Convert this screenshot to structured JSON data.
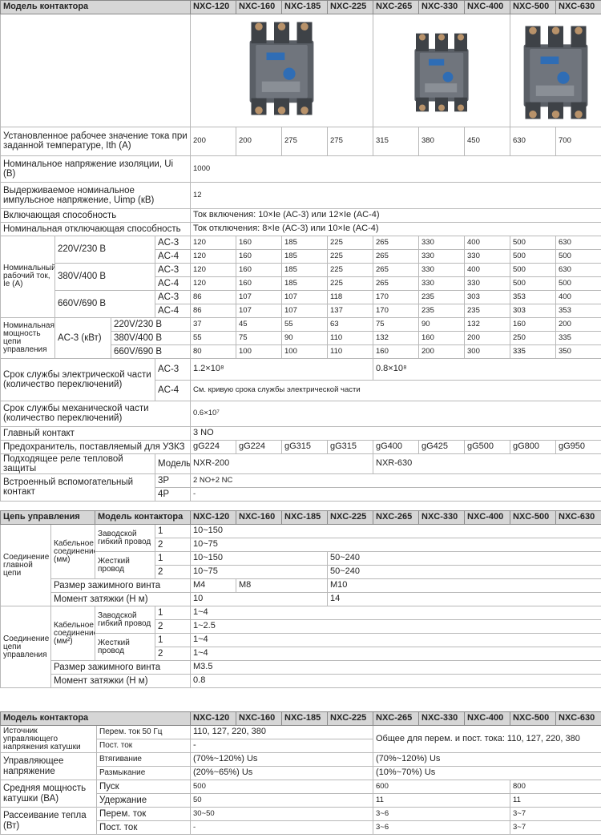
{
  "table1": {
    "header": [
      "Модель контактора",
      "NXC-120",
      "NXC-160",
      "NXC-185",
      "NXC-225",
      "NXC-265",
      "NXC-330",
      "NXC-400",
      "NXC-500",
      "NXC-630"
    ],
    "rows": [
      [
        "Установленное рабочее значение тока при заданной температуре, Ith (A)",
        200,
        200,
        275,
        275,
        315,
        380,
        450,
        630,
        700
      ],
      [
        "Номинальное напряжение изоляции, Ui (В)",
        1000
      ],
      [
        "Выдерживаемое номинальное импульсное напряжение, Uimp (кВ)",
        12
      ],
      [
        "Включающая способность",
        "Ток включения: 10×Ie (AC-3) или 12×Ie (AC-4)"
      ],
      [
        "Номинальная отключающая способность",
        "Ток отключения: 8×Ie (AC-3) или 10×Ie (AC-4)"
      ],
      [
        "Номинальный рабочий ток, Ie (A)",
        "220V/230 В",
        "AC-3",
        120,
        160,
        185,
        225,
        265,
        330,
        400,
        500,
        630
      ],
      [
        "AC-4",
        120,
        160,
        185,
        225,
        265,
        330,
        330,
        500,
        500
      ],
      [
        "380V/400 В",
        "AC-3",
        120,
        160,
        185,
        225,
        265,
        330,
        400,
        500,
        630
      ],
      [
        "AC-4",
        120,
        160,
        185,
        225,
        265,
        330,
        330,
        500,
        500
      ],
      [
        "660V/690 В",
        "AC-3",
        86,
        107,
        107,
        118,
        170,
        235,
        303,
        353,
        400
      ],
      [
        "AC-4",
        86,
        107,
        107,
        137,
        170,
        235,
        235,
        303,
        353
      ],
      [
        "Номинальная мощность цепи управления",
        "AC-3 (кВт)",
        "220V/230 В",
        37,
        45,
        55,
        63,
        75,
        90,
        132,
        160,
        200
      ],
      [
        "380V/400 В",
        55,
        75,
        90,
        110,
        132,
        160,
        200,
        250,
        335
      ],
      [
        "660V/690 В",
        80,
        100,
        100,
        110,
        160,
        200,
        300,
        335,
        350
      ],
      [
        "Срок службы электрической части (количество переключений)",
        "AC-3",
        "1.2×10⁸",
        "0.8×10⁸"
      ],
      [
        "AC-4",
        "См. кривую срока службы электрической части"
      ],
      [
        "Срок службы механической части (количество переключений)",
        "0.6×10⁷"
      ],
      [
        "Главный контакт",
        "3 NO"
      ],
      [
        "Предохранитель, поставляемый для УЗКЗ",
        "gG224",
        "gG224",
        "gG315",
        "gG315",
        "gG400",
        "gG425",
        "gG500",
        "gG800",
        "gG950"
      ],
      [
        "Подходящее реле тепловой защиты",
        "Модель",
        "NXR-200",
        "NXR-630"
      ],
      [
        "Встроенный вспомогательный контакт",
        "3P",
        "2 NO+2 NC"
      ],
      [
        "4P",
        "-"
      ]
    ]
  },
  "table2": {
    "header": [
      "Цепь управления",
      "Модель контактора",
      "NXC-120",
      "NXC-160",
      "NXC-185",
      "NXC-225",
      "NXC-265",
      "NXC-330",
      "NXC-400",
      "NXC-500",
      "NXC-630"
    ],
    "rows": [
      [
        "Соединение главной цепи",
        "Кабельное соединение (мм)",
        "Заводской гибкий провод",
        1,
        "10~150"
      ],
      [
        2,
        "10~75"
      ],
      [
        "Жесткий провод",
        1,
        "10~150",
        "50~240"
      ],
      [
        2,
        "10~75",
        "50~240"
      ],
      [
        "Размер зажимного винта",
        "M4",
        "M8",
        "M10"
      ],
      [
        "Момент затяжки (Н м)",
        10,
        14
      ],
      [
        "Соединение цепи управления",
        "Кабельное соединение (мм²)",
        "Заводской гибкий провод",
        1,
        "1~4"
      ],
      [
        2,
        "1~2.5"
      ],
      [
        "Жесткий провод",
        1,
        "1~4"
      ],
      [
        2,
        "1~4"
      ],
      [
        "Размер зажимного винта",
        "M3.5"
      ],
      [
        "Момент затяжки (Н м)",
        0.8
      ]
    ]
  },
  "table3": {
    "header": [
      "Модель контактора",
      "NXC-120",
      "NXC-160",
      "NXC-185",
      "NXC-225",
      "NXC-265",
      "NXC-330",
      "NXC-400",
      "NXC-500",
      "NXC-630"
    ],
    "rows": [
      [
        "Источник управляющего напряжения катушки",
        "Перем. ток 50 Гц",
        "110, 127, 220, 380",
        "Общее для перем. и пост. тока: 110, 127, 220, 380"
      ],
      [
        "Пост. ток",
        "-"
      ],
      [
        "Управляющее напряжение",
        "Втягивание",
        "(70%~120%) Us",
        "(70%~120%) Us"
      ],
      [
        "Размыкание",
        "(20%~65%) Us",
        "(10%~70%) Us"
      ],
      [
        "Средняя мощность катушки (ВА)",
        "Пуск",
        500,
        600,
        800
      ],
      [
        "Удержание",
        50,
        11,
        11
      ],
      [
        "Рассеивание тепла (Вт)",
        "Перем. ток",
        "30~50",
        "3~6",
        "3~7"
      ],
      [
        "Пост. ток",
        "-",
        "3~6",
        "3~7"
      ]
    ]
  }
}
